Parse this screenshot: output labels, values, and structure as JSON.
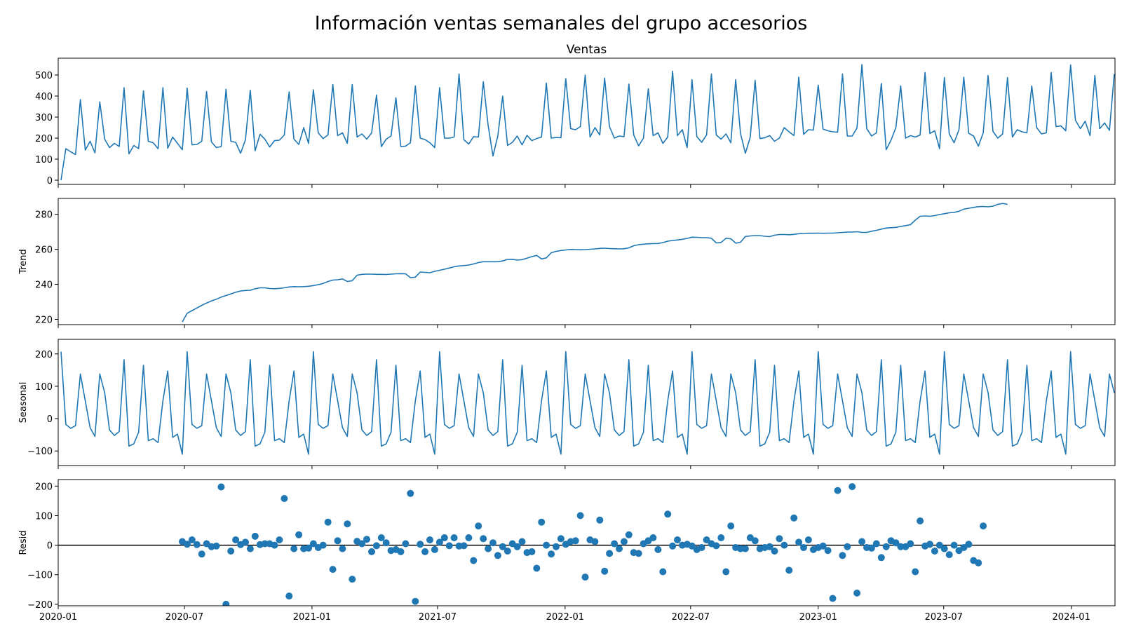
{
  "figure": {
    "title": "Información ventas semanales del grupo accesorios",
    "colors": {
      "series": "#1f77b4",
      "axes": "#000000",
      "background": "#ffffff"
    },
    "x_axis": {
      "type": "date",
      "range": [
        "2020-01-01",
        "2024-03-04"
      ],
      "ticks": [
        {
          "date": "2020-01-01",
          "label": "2020-01"
        },
        {
          "date": "2020-07-01",
          "label": "2020-07"
        },
        {
          "date": "2021-01-01",
          "label": "2021-01"
        },
        {
          "date": "2021-07-01",
          "label": "2021-07"
        },
        {
          "date": "2022-01-01",
          "label": "2022-01"
        },
        {
          "date": "2022-07-01",
          "label": "2022-07"
        },
        {
          "date": "2023-01-01",
          "label": "2023-01"
        },
        {
          "date": "2023-07-01",
          "label": "2023-07"
        },
        {
          "date": "2024-01-01",
          "label": "2024-01"
        }
      ]
    }
  },
  "chart_data": [
    {
      "type": "line",
      "panel": "observed",
      "title": "Ventas",
      "ylabel": "",
      "ylim": [
        -20,
        580
      ],
      "yticks": [
        0,
        100,
        200,
        300,
        400,
        500
      ],
      "series": [
        {
          "start": "2020-01-05",
          "freq_days": 7,
          "values": [
            0,
            150,
            135,
            122,
            383,
            143,
            185,
            130,
            372,
            195,
            155,
            175,
            160,
            440,
            125,
            165,
            150,
            425,
            185,
            178,
            150,
            440,
            152,
            205,
            175,
            145,
            438,
            168,
            170,
            185,
            422,
            182,
            155,
            160,
            432,
            185,
            180,
            128,
            192,
            428,
            140,
            218,
            195,
            158,
            188,
            190,
            215,
            420,
            195,
            170,
            250,
            175,
            430,
            225,
            198,
            215,
            455,
            212,
            225,
            175,
            455,
            205,
            220,
            195,
            225,
            405,
            160,
            195,
            210,
            392,
            160,
            162,
            178,
            448,
            200,
            193,
            178,
            155,
            440,
            200,
            200,
            205,
            505,
            192,
            172,
            207,
            205,
            468,
            260,
            115,
            210,
            400,
            165,
            180,
            210,
            168,
            213,
            188,
            198,
            205,
            462,
            200,
            203,
            202,
            483,
            245,
            240,
            255,
            500,
            205,
            250,
            215,
            485,
            255,
            200,
            210,
            207,
            457,
            215,
            163,
            200,
            435,
            212,
            225,
            175,
            205,
            518,
            212,
            240,
            155,
            478,
            207,
            180,
            215,
            505,
            215,
            195,
            220,
            178,
            478,
            222,
            128,
            205,
            475,
            198,
            202,
            212,
            185,
            200,
            250,
            230,
            212,
            490,
            218,
            240,
            238,
            452,
            243,
            235,
            230,
            228,
            505,
            210,
            210,
            248,
            550,
            245,
            210,
            225,
            460,
            145,
            190,
            250,
            448,
            200,
            212,
            205,
            215,
            512,
            222,
            235,
            150,
            488,
            220,
            178,
            240,
            490,
            223,
            210,
            162,
            225,
            498,
            232,
            200,
            220,
            488,
            205,
            240,
            230,
            225,
            448,
            250,
            220,
            225,
            512,
            255,
            258,
            235,
            548,
            285,
            245,
            280,
            212,
            498,
            245,
            272,
            237,
            505
          ]
        }
      ]
    },
    {
      "type": "line",
      "panel": "trend",
      "title": "",
      "ylabel": "Trend",
      "ylim": [
        217,
        289
      ],
      "yticks": [
        220,
        240,
        260,
        280
      ],
      "series": [
        {
          "start": "2020-06-28",
          "freq_days": 7,
          "values": [
            218.5,
            223.5,
            225.0,
            226.5,
            228.0,
            229.3,
            230.5,
            231.5,
            232.7,
            233.6,
            234.5,
            235.5,
            236.2,
            236.5,
            236.6,
            237.5,
            238.0,
            238.0,
            237.6,
            237.5,
            237.7,
            238.0,
            238.5,
            238.7,
            238.6,
            238.7,
            238.9,
            239.3,
            239.8,
            240.5,
            241.6,
            242.4,
            242.6,
            243.1,
            241.6,
            242.1,
            245.2,
            245.7,
            245.8,
            245.8,
            245.7,
            245.7,
            245.6,
            245.8,
            246.0,
            246.1,
            246.0,
            243.8,
            244.1,
            247.0,
            246.8,
            246.6,
            247.4,
            248.0,
            248.6,
            249.3,
            250.0,
            250.5,
            250.7,
            251.0,
            251.6,
            252.4,
            252.9,
            252.9,
            252.9,
            252.9,
            253.3,
            254.2,
            254.3,
            253.8,
            254.1,
            254.9,
            255.8,
            256.5,
            254.5,
            255.1,
            258.0,
            258.8,
            259.3,
            259.6,
            259.9,
            259.8,
            259.7,
            259.8,
            260.0,
            260.2,
            260.5,
            260.6,
            260.4,
            260.3,
            260.2,
            260.3,
            260.8,
            262.0,
            262.6,
            262.9,
            263.1,
            263.2,
            263.3,
            263.8,
            264.6,
            265.0,
            265.3,
            265.7,
            266.2,
            266.9,
            266.8,
            266.6,
            266.6,
            266.3,
            263.6,
            263.9,
            266.3,
            266.0,
            263.5,
            264.0,
            267.3,
            267.6,
            267.8,
            267.8,
            267.4,
            267.2,
            268.0,
            268.4,
            268.4,
            268.3,
            268.5,
            268.9,
            269.0,
            269.1,
            269.1,
            269.2,
            269.1,
            269.2,
            269.2,
            269.4,
            269.6,
            269.8,
            269.8,
            270.0,
            269.6,
            269.6,
            270.3,
            270.8,
            271.5,
            272.1,
            272.3,
            272.5,
            273.0,
            273.5,
            274.0,
            276.6,
            278.8,
            279.0,
            278.8,
            279.2,
            279.8,
            280.3,
            280.8,
            281.0,
            281.7,
            282.9,
            283.4,
            283.9,
            284.3,
            284.4,
            284.2,
            284.6,
            285.6,
            286.1,
            285.6
          ]
        }
      ]
    },
    {
      "type": "line",
      "panel": "seasonal",
      "title": "",
      "ylabel": "Seasonal",
      "ylim": [
        -145,
        245
      ],
      "yticks": [
        -100,
        0,
        100,
        200
      ],
      "series": [
        {
          "start": "2020-01-05",
          "freq_days": 7,
          "pattern": [
            207,
            -18,
            -30,
            -22,
            138,
            55,
            -28,
            -55,
            138,
            80,
            -35,
            -52,
            -40,
            182,
            -85,
            -78,
            -42,
            165,
            -68,
            -62,
            -74,
            55,
            147,
            -58,
            -48,
            -110
          ],
          "period": 52
        }
      ]
    },
    {
      "type": "scatter",
      "panel": "resid",
      "title": "",
      "ylabel": "Resid",
      "ylim": [
        -205,
        222
      ],
      "yticks": [
        -200,
        -100,
        0,
        100,
        200
      ],
      "hline": 0,
      "series": [
        {
          "start": "2020-06-28",
          "freq_days": 7,
          "values": [
            12,
            3,
            18,
            2,
            -30,
            5,
            -5,
            -3,
            197,
            -200,
            -20,
            18,
            2,
            10,
            -12,
            30,
            2,
            5,
            5,
            0,
            18,
            158,
            -172,
            -12,
            35,
            -12,
            -10,
            5,
            -8,
            0,
            78,
            -82,
            15,
            -12,
            72,
            -115,
            13,
            5,
            20,
            -22,
            -2,
            25,
            8,
            -18,
            -15,
            -22,
            5,
            175,
            -190,
            3,
            -22,
            18,
            -15,
            10,
            25,
            -2,
            25,
            -3,
            -2,
            25,
            -52,
            65,
            22,
            -12,
            8,
            -35,
            -5,
            -20,
            5,
            -5,
            12,
            -25,
            -22,
            -78,
            78,
            0,
            -30,
            -5,
            22,
            3,
            12,
            15,
            100,
            -108,
            18,
            12,
            85,
            -88,
            -28,
            5,
            -12,
            12,
            35,
            -25,
            -28,
            5,
            15,
            25,
            -15,
            -90,
            105,
            -3,
            18,
            0,
            3,
            -3,
            -15,
            -8,
            18,
            5,
            -2,
            25,
            -90,
            65,
            -8,
            -12,
            -12,
            25,
            15,
            -12,
            -8,
            -5,
            -20,
            22,
            0,
            -85,
            92,
            10,
            -8,
            18,
            -15,
            -8,
            -3,
            -18,
            -180,
            185,
            -35,
            -5,
            198,
            -162,
            12,
            -8,
            -10,
            5,
            -42,
            -5,
            15,
            8,
            -5,
            -5,
            5,
            -90,
            82,
            -3,
            3,
            -20,
            0,
            -12,
            -32,
            0,
            -18,
            -8,
            3,
            -52,
            -60,
            65
          ]
        }
      ]
    }
  ]
}
